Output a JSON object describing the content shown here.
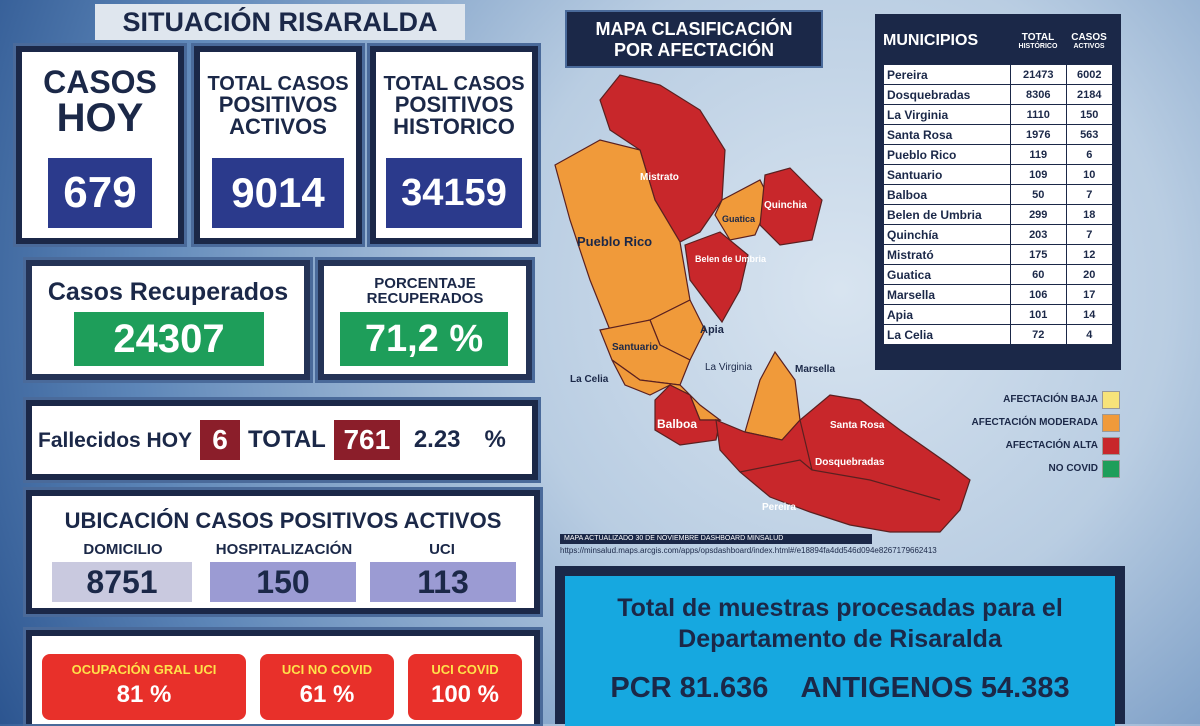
{
  "header": {
    "title": "SITUACIÓN RISARALDA"
  },
  "cards": [
    {
      "lines": [
        "CASOS",
        "HOY"
      ],
      "value": "679"
    },
    {
      "lines": [
        "TOTAL CASOS",
        "POSITIVOS",
        "ACTIVOS"
      ],
      "value": "9014"
    },
    {
      "lines": [
        "TOTAL CASOS",
        "POSITIVOS",
        "HISTORICO"
      ],
      "value": "34159"
    }
  ],
  "recovered": {
    "label": "Casos Recuperados",
    "value": "24307"
  },
  "recovered_pct": {
    "lines": [
      "PORCENTAJE",
      "RECUPERADOS"
    ],
    "value": "71,2 %"
  },
  "deaths": {
    "today_label": "Fallecidos HOY",
    "today": "6",
    "total_label": "TOTAL",
    "total": "761",
    "rate": "2.23",
    "rate_unit": "%"
  },
  "location": {
    "title": "UBICACIÓN CASOS POSITIVOS ACTIVOS",
    "items": [
      {
        "label": "DOMICILIO",
        "value": "8751"
      },
      {
        "label": "HOSPITALIZACIÓN",
        "value": "150"
      },
      {
        "label": "UCI",
        "value": "113"
      }
    ]
  },
  "icu": [
    {
      "label": "OCUPACIÓN GRAL UCI",
      "value": "81 %"
    },
    {
      "label": "UCI NO COVID",
      "value": "61 %"
    },
    {
      "label": "UCI COVID",
      "value": "100 %"
    }
  ],
  "map": {
    "title": [
      "MAPA CLASIFICACIÓN",
      "POR AFECTACIÓN"
    ],
    "labels": [
      "Mistrato",
      "Quinchia",
      "Guatica",
      "Pueblo Rico",
      "Belen de Umbria",
      "Apia",
      "Santuario",
      "La Celia",
      "La Virginia",
      "Marsella",
      "Balboa",
      "Santa Rosa",
      "Dosquebradas",
      "Pereira"
    ],
    "legend": [
      "AFECTACIÓN BAJA",
      "AFECTACIÓN MODERADA",
      "AFECTACIÓN ALTA",
      "NO COVID"
    ],
    "note": "MAPA ACTUALIZADO 30 DE NOVIEMBRE DASHBOARD MINSALUD",
    "url": "https://minsalud.maps.arcgis.com/apps/opsdashboard/index.html#/e18894fa4dd546d094e8267179662413"
  },
  "table": {
    "header": [
      "MUNICIPIOS",
      "TOTAL",
      "HISTÓRICO",
      "CASOS",
      "ACTIVOS"
    ],
    "rows": [
      [
        "Pereira",
        "21473",
        "6002"
      ],
      [
        "Dosquebradas",
        "8306",
        "2184"
      ],
      [
        "La Virginia",
        "1110",
        "150"
      ],
      [
        "Santa Rosa",
        "1976",
        "563"
      ],
      [
        "Pueblo Rico",
        "119",
        "6"
      ],
      [
        "Santuario",
        "109",
        "10"
      ],
      [
        "Balboa",
        "50",
        "7"
      ],
      [
        "Belen de Umbria",
        "299",
        "18"
      ],
      [
        "Quinchía",
        "203",
        "7"
      ],
      [
        "Mistrató",
        "175",
        "12"
      ],
      [
        "Guatica",
        "60",
        "20"
      ],
      [
        "Marsella",
        "106",
        "17"
      ],
      [
        "Apia",
        "101",
        "14"
      ],
      [
        "La Celia",
        "72",
        "4"
      ]
    ]
  },
  "samples": {
    "lines": [
      "Total de muestras procesadas para el",
      "Departamento de Risaralda"
    ],
    "pcr_label": "PCR",
    "pcr": "81.636",
    "ag_label": "ANTIGENOS",
    "ag": "54.383"
  }
}
